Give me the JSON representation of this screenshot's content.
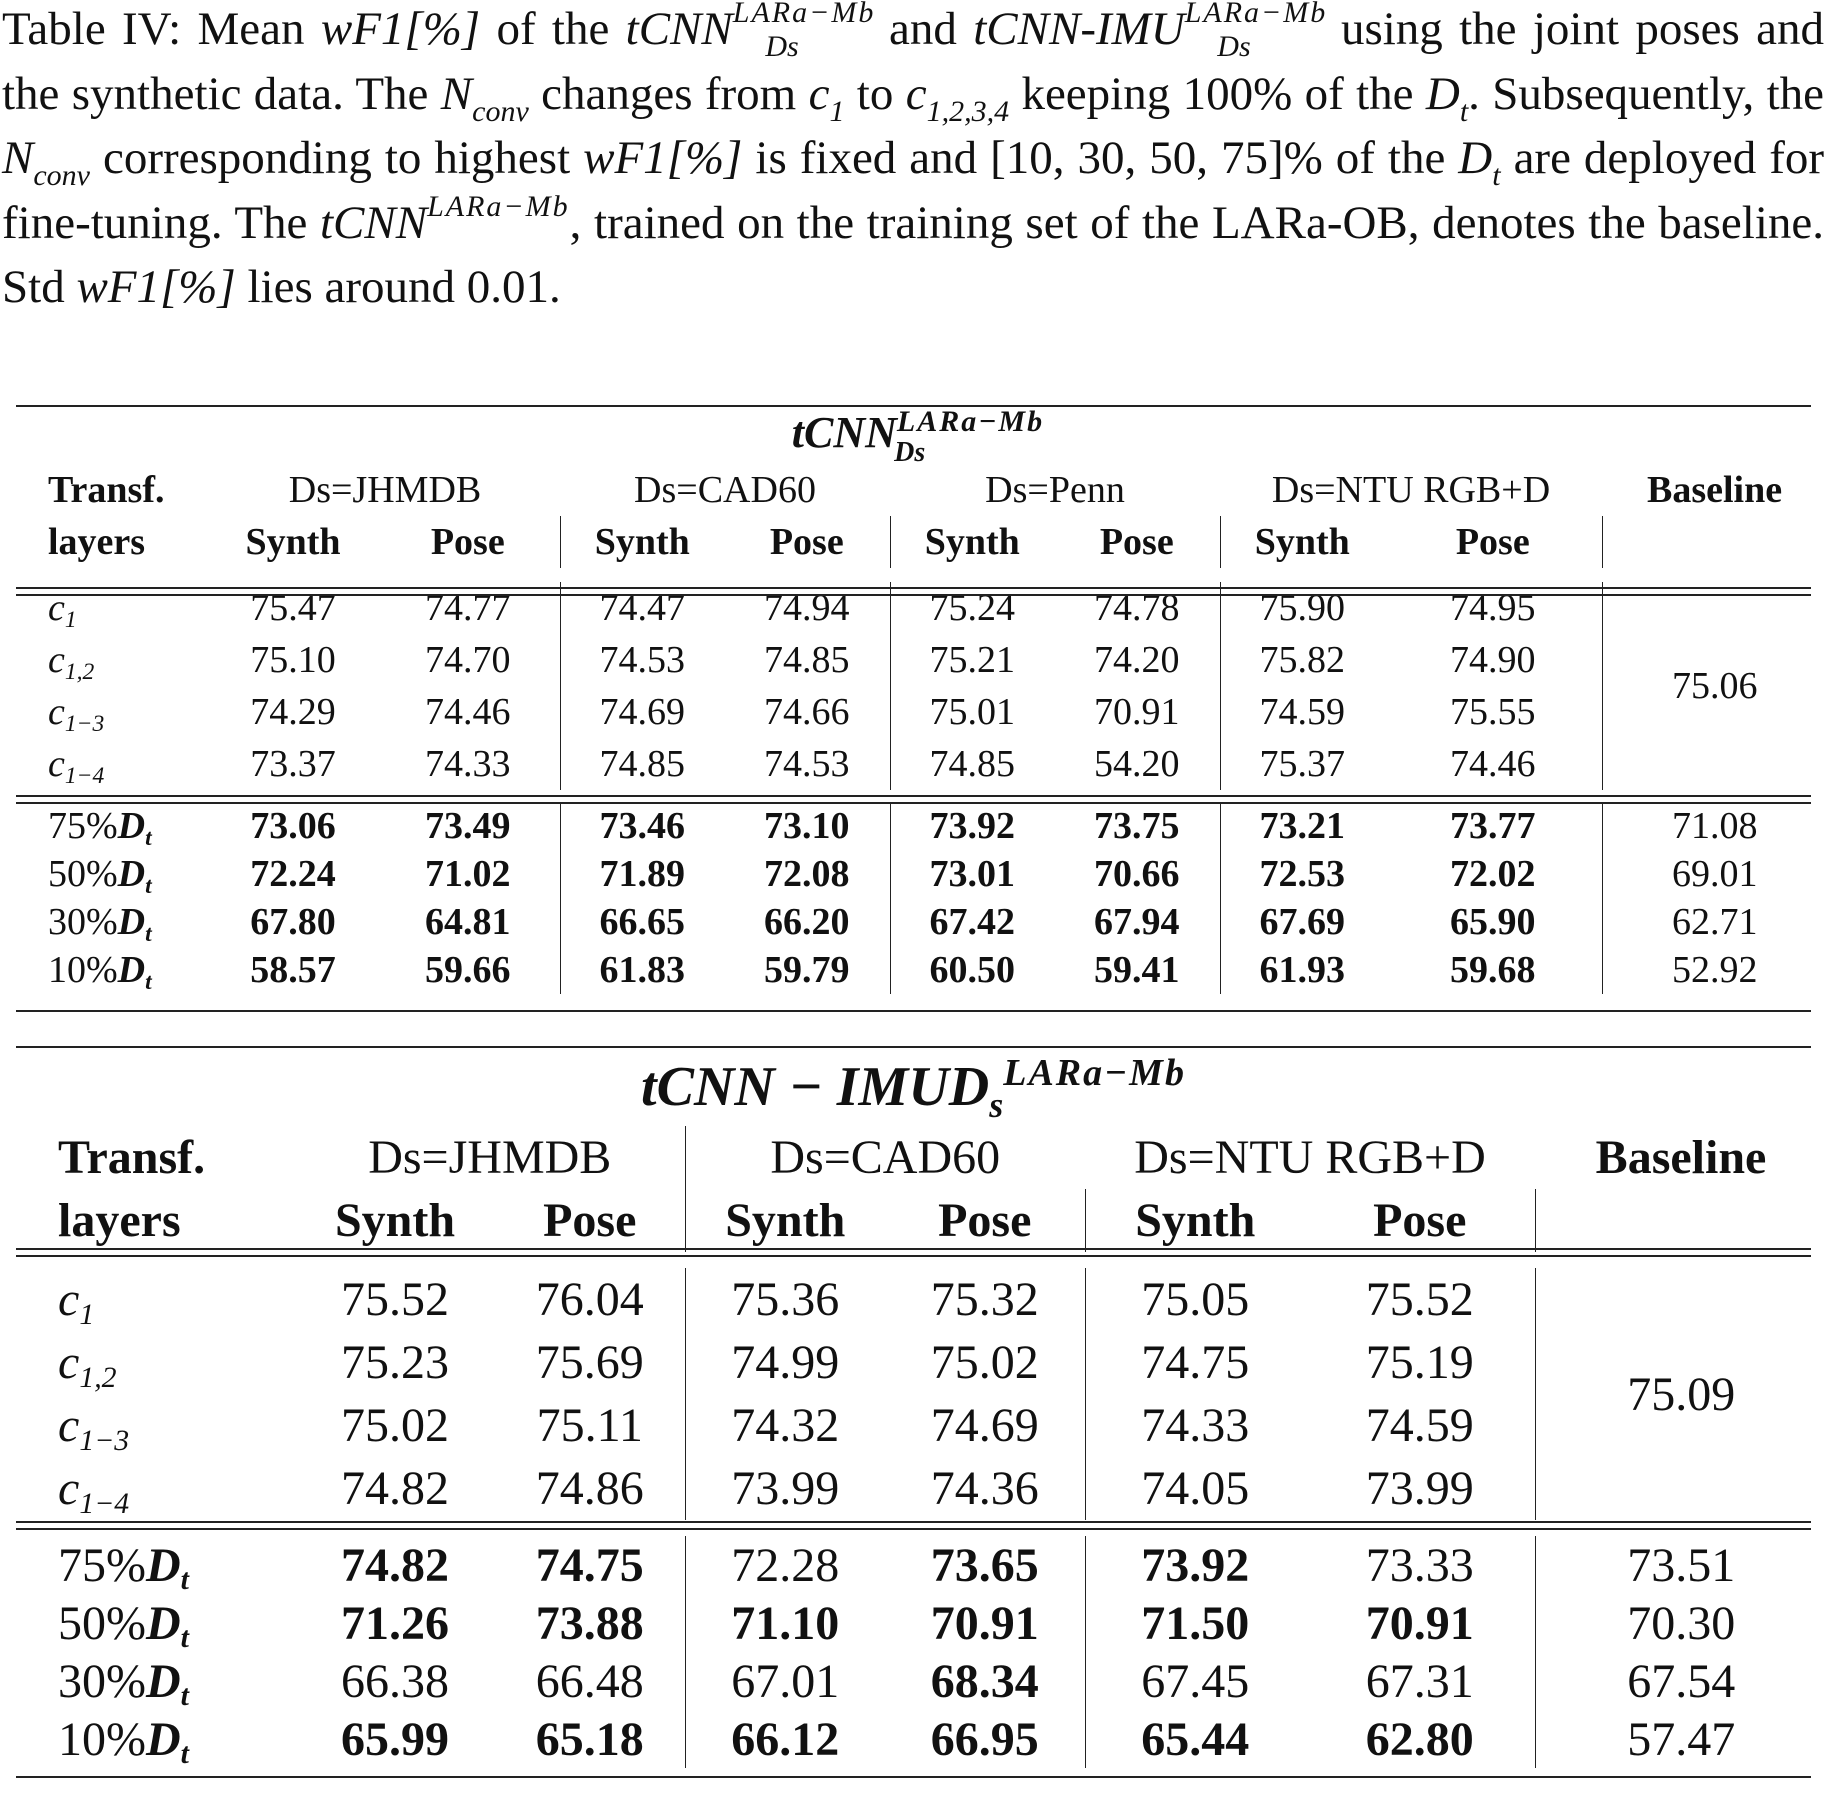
{
  "caption": {
    "p1": "Table IV: Mean ",
    "wf1": "wF1[%]",
    "p2": " of the ",
    "m1": "tCNN",
    "sup": "LARa−Mb",
    "sub": "Ds",
    "p3": " and ",
    "m2": "tCNN-IMU",
    "p4": " using the joint poses and the synthetic data. The ",
    "nconv": "N",
    "nconv_sub": "conv",
    "p5": " changes from ",
    "c1": "c",
    "c1_sub": "1",
    "p6": " to ",
    "c1234_sub": "1,2,3,4",
    "p7": " keeping 100% of the ",
    "dt": "D",
    "dt_sub": "t",
    "p8": ". Subsequently, the ",
    "p9": " corresponding to highest ",
    "p10": " is fixed and [10, 30, 50, 75]% of the ",
    "p11": " are deployed for fine-tuning. The ",
    "p12": ", trained on the training set of the LARa-OB, denotes the baseline. Std ",
    "p13": " lies around 0.01."
  },
  "table1": {
    "title": "tCNN",
    "title_sup": "LARa−Mb",
    "title_sub": "Ds",
    "header1": [
      "Transf.",
      "Ds=JHMDB",
      "Ds=CAD60",
      "Ds=Penn",
      "Ds=NTU RGB+D",
      "Baseline"
    ],
    "header2": [
      "layers",
      "Synth",
      "Pose",
      "Synth",
      "Pose",
      "Synth",
      "Pose",
      "Synth",
      "Pose"
    ],
    "layer_rows": [
      {
        "label": "c",
        "sub": "1",
        "values": [
          "75.47",
          "74.77",
          "74.47",
          "74.94",
          "75.24",
          "74.78",
          "75.90",
          "74.95"
        ]
      },
      {
        "label": "c",
        "sub": "1,2",
        "values": [
          "75.10",
          "74.70",
          "74.53",
          "74.85",
          "75.21",
          "74.20",
          "75.82",
          "74.90"
        ]
      },
      {
        "label": "c",
        "sub": "1−3",
        "values": [
          "74.29",
          "74.46",
          "74.69",
          "74.66",
          "75.01",
          "70.91",
          "74.59",
          "75.55"
        ]
      },
      {
        "label": "c",
        "sub": "1−4",
        "values": [
          "73.37",
          "74.33",
          "74.85",
          "74.53",
          "74.85",
          "54.20",
          "75.37",
          "74.46"
        ]
      }
    ],
    "layer_baseline": "75.06",
    "dt_rows": [
      {
        "label": "75%",
        "values": [
          "73.06",
          "73.49",
          "73.46",
          "73.10",
          "73.92",
          "73.75",
          "73.21",
          "73.77"
        ],
        "bold": [
          1,
          1,
          1,
          1,
          1,
          1,
          1,
          1
        ],
        "baseline": "71.08"
      },
      {
        "label": "50%",
        "values": [
          "72.24",
          "71.02",
          "71.89",
          "72.08",
          "73.01",
          "70.66",
          "72.53",
          "72.02"
        ],
        "bold": [
          1,
          1,
          1,
          1,
          1,
          1,
          1,
          1
        ],
        "baseline": "69.01"
      },
      {
        "label": "30%",
        "values": [
          "67.80",
          "64.81",
          "66.65",
          "66.20",
          "67.42",
          "67.94",
          "67.69",
          "65.90"
        ],
        "bold": [
          1,
          1,
          1,
          1,
          1,
          1,
          1,
          1
        ],
        "baseline": "62.71"
      },
      {
        "label": "10%",
        "values": [
          "58.57",
          "59.66",
          "61.83",
          "59.79",
          "60.50",
          "59.41",
          "61.93",
          "59.68"
        ],
        "bold": [
          1,
          1,
          1,
          1,
          1,
          1,
          1,
          1
        ],
        "baseline": "52.92"
      }
    ]
  },
  "table2": {
    "title": "tCNN − IMUD",
    "title_sub": "s",
    "title_sup": "LARa−Mb",
    "header1": [
      "Transf.",
      "Ds=JHMDB",
      "Ds=CAD60",
      "Ds=NTU RGB+D",
      "Baseline"
    ],
    "header2": [
      "layers",
      "Synth",
      "Pose",
      "Synth",
      "Pose",
      "Synth",
      "Pose"
    ],
    "layer_rows": [
      {
        "label": "c",
        "sub": "1",
        "values": [
          "75.52",
          "76.04",
          "75.36",
          "75.32",
          "75.05",
          "75.52"
        ]
      },
      {
        "label": "c",
        "sub": "1,2",
        "values": [
          "75.23",
          "75.69",
          "74.99",
          "75.02",
          "74.75",
          "75.19"
        ]
      },
      {
        "label": "c",
        "sub": "1−3",
        "values": [
          "75.02",
          "75.11",
          "74.32",
          "74.69",
          "74.33",
          "74.59"
        ]
      },
      {
        "label": "c",
        "sub": "1−4",
        "values": [
          "74.82",
          "74.86",
          "73.99",
          "74.36",
          "74.05",
          "73.99"
        ]
      }
    ],
    "layer_baseline": "75.09",
    "dt_rows": [
      {
        "label": "75%",
        "values": [
          "74.82",
          "74.75",
          "72.28",
          "73.65",
          "73.92",
          "73.33"
        ],
        "bold": [
          1,
          1,
          0,
          1,
          1,
          0
        ],
        "baseline": "73.51"
      },
      {
        "label": "50%",
        "values": [
          "71.26",
          "73.88",
          "71.10",
          "70.91",
          "71.50",
          "70.91"
        ],
        "bold": [
          1,
          1,
          1,
          1,
          1,
          1
        ],
        "baseline": "70.30"
      },
      {
        "label": "30%",
        "values": [
          "66.38",
          "66.48",
          "67.01",
          "68.34",
          "67.45",
          "67.31"
        ],
        "bold": [
          0,
          0,
          0,
          1,
          0,
          0
        ],
        "baseline": "67.54"
      },
      {
        "label": "10%",
        "values": [
          "65.99",
          "65.18",
          "66.12",
          "66.95",
          "65.44",
          "62.80"
        ],
        "bold": [
          1,
          1,
          1,
          1,
          1,
          1
        ],
        "baseline": "57.47"
      }
    ]
  }
}
